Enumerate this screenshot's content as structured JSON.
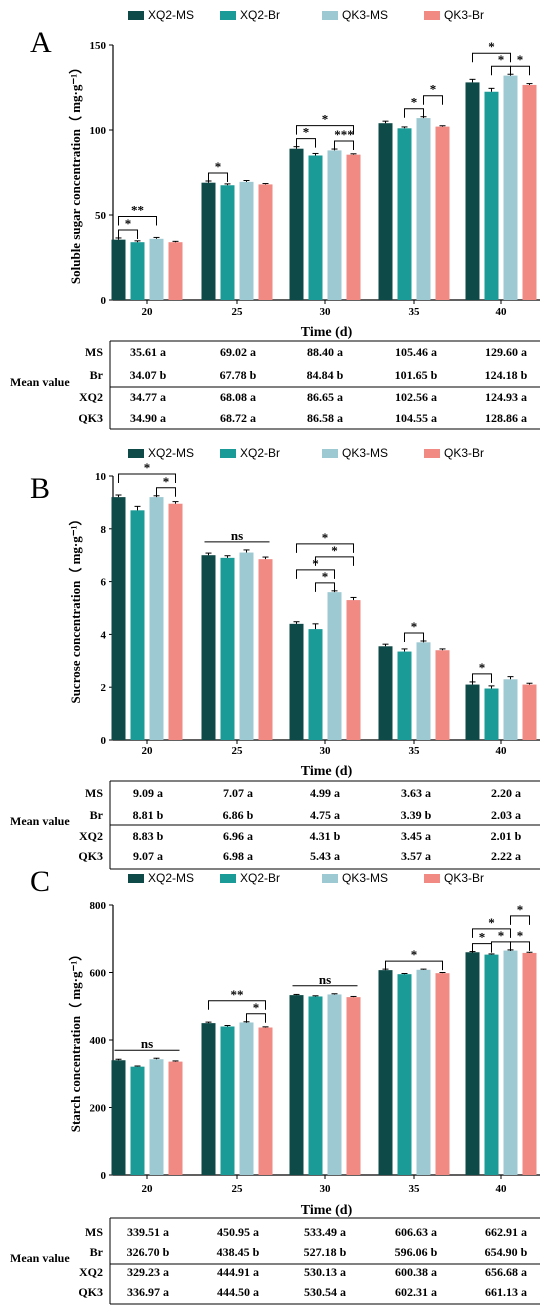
{
  "colors": {
    "XQ2-MS": "#0e4a47",
    "XQ2-Br": "#1a9b97",
    "QK3-MS": "#9cc9d2",
    "QK3-Br": "#f28a84"
  },
  "chart_data": [
    {
      "type": "bar",
      "panel_label": "A",
      "title": "",
      "xlabel": "Time (d)",
      "ylabel": "Soluble sugar concentration（ mg·g⁻¹）",
      "ylim": [
        0,
        150
      ],
      "yticks": [
        0,
        50,
        100,
        150
      ],
      "categories": [
        "20",
        "25",
        "30",
        "35",
        "40"
      ],
      "legend": "top",
      "grid": false,
      "series": [
        {
          "name": "XQ2-MS",
          "values": [
            35.5,
            69.0,
            89.0,
            104.0,
            128.0
          ],
          "errors": [
            1.0,
            1.0,
            1.2,
            1.2,
            1.8
          ]
        },
        {
          "name": "XQ2-Br",
          "values": [
            34.0,
            67.5,
            85.0,
            101.0,
            122.5
          ],
          "errors": [
            0.8,
            0.8,
            1.2,
            0.8,
            2.0
          ]
        },
        {
          "name": "QK3-MS",
          "values": [
            36.0,
            69.5,
            88.0,
            107.0,
            132.0
          ],
          "errors": [
            0.8,
            0.8,
            0.8,
            0.8,
            0.8
          ]
        },
        {
          "name": "QK3-Br",
          "values": [
            34.0,
            68.0,
            85.5,
            102.0,
            126.5
          ],
          "errors": [
            0.5,
            0.5,
            0.5,
            0.5,
            0.8
          ]
        }
      ],
      "significance": [
        {
          "cat": 0,
          "from": 0,
          "to": 1,
          "label": "*",
          "level": 1
        },
        {
          "cat": 0,
          "from": 0,
          "to": 2,
          "label": "**",
          "level": 2
        },
        {
          "cat": 1,
          "from": 0,
          "to": 1,
          "label": "*",
          "level": 1
        },
        {
          "cat": 2,
          "from": 0,
          "to": 1,
          "label": "*",
          "level": 1
        },
        {
          "cat": 2,
          "from": 2,
          "to": 3,
          "label": "***",
          "level": 1
        },
        {
          "cat": 2,
          "from": 0,
          "to": 3,
          "label": "*",
          "level": 2
        },
        {
          "cat": 3,
          "from": 1,
          "to": 2,
          "label": "*",
          "level": 1
        },
        {
          "cat": 3,
          "from": 2,
          "to": 3,
          "label": "*",
          "level": 2
        },
        {
          "cat": 4,
          "from": 1,
          "to": 2,
          "label": "*",
          "level": 1
        },
        {
          "cat": 4,
          "from": 2,
          "to": 3,
          "label": "*",
          "level": 1
        },
        {
          "cat": 4,
          "from": 0,
          "to": 2,
          "label": "*",
          "level": 2
        }
      ],
      "table": {
        "title": "Mean value",
        "rows": [
          {
            "label": "MS",
            "values": [
              "35.61 a",
              "69.02 a",
              "88.40 a",
              "105.46 a",
              "129.60 a"
            ]
          },
          {
            "label": "Br",
            "values": [
              "34.07 b",
              "67.78 b",
              "84.84 b",
              "101.65 b",
              "124.18 b"
            ]
          },
          {
            "label": "XQ2",
            "values": [
              "34.77 a",
              "68.08 a",
              "86.65 a",
              "102.56 a",
              "124.93 a"
            ]
          },
          {
            "label": "QK3",
            "values": [
              "34.90 a",
              "68.72 a",
              "86.58 a",
              "104.55 a",
              "128.86 a"
            ]
          }
        ]
      }
    },
    {
      "type": "bar",
      "panel_label": "B",
      "title": "",
      "xlabel": "Time (d)",
      "ylabel": "Sucrose concentration（ mg·g⁻¹）",
      "ylim": [
        0,
        10
      ],
      "yticks": [
        0,
        2,
        4,
        6,
        8,
        10
      ],
      "categories": [
        "20",
        "25",
        "30",
        "35",
        "40"
      ],
      "legend": "top",
      "grid": false,
      "series": [
        {
          "name": "XQ2-MS",
          "values": [
            9.2,
            7.0,
            4.4,
            3.55,
            2.1
          ],
          "errors": [
            0.08,
            0.08,
            0.08,
            0.08,
            0.1
          ]
        },
        {
          "name": "XQ2-Br",
          "values": [
            8.7,
            6.9,
            4.2,
            3.35,
            1.95
          ],
          "errors": [
            0.15,
            0.08,
            0.2,
            0.1,
            0.1
          ]
        },
        {
          "name": "QK3-MS",
          "values": [
            9.2,
            7.1,
            5.6,
            3.7,
            2.3
          ],
          "errors": [
            0.05,
            0.1,
            0.05,
            0.05,
            0.1
          ]
        },
        {
          "name": "QK3-Br",
          "values": [
            8.95,
            6.85,
            5.3,
            3.4,
            2.1
          ],
          "errors": [
            0.08,
            0.08,
            0.1,
            0.05,
            0.05
          ]
        }
      ],
      "significance": [
        {
          "cat": 0,
          "from": 2,
          "to": 3,
          "label": "*",
          "level": 1
        },
        {
          "cat": 0,
          "from": 0,
          "to": 3,
          "label": "*",
          "level": 2
        },
        {
          "cat": 1,
          "from": 0,
          "to": 3,
          "label": "ns",
          "level": 1,
          "plain": true
        },
        {
          "cat": 2,
          "from": 1,
          "to": 2,
          "label": "*",
          "level": 1
        },
        {
          "cat": 2,
          "from": 0,
          "to": 2,
          "label": "*",
          "level": 2
        },
        {
          "cat": 2,
          "from": 1,
          "to": 3,
          "label": "*",
          "level": 3
        },
        {
          "cat": 2,
          "from": 0,
          "to": 3,
          "label": "*",
          "level": 4
        },
        {
          "cat": 3,
          "from": 1,
          "to": 2,
          "label": "*",
          "level": 1
        },
        {
          "cat": 4,
          "from": 0,
          "to": 1,
          "label": "*",
          "level": 1
        }
      ],
      "table": {
        "title": "Mean value",
        "rows": [
          {
            "label": "MS",
            "values": [
              "9.09 a",
              "7.07 a",
              "4.99 a",
              "3.63 a",
              "2.20 a"
            ]
          },
          {
            "label": "Br",
            "values": [
              "8.81 b",
              "6.86 b",
              "4.75 a",
              "3.39 b",
              "2.03 a"
            ]
          },
          {
            "label": "XQ2",
            "values": [
              "8.83 b",
              "6.96 a",
              "4.31 b",
              "3.45 a",
              "2.01 b"
            ]
          },
          {
            "label": "QK3",
            "values": [
              "9.07 a",
              "6.98 a",
              "5.43 a",
              "3.57 a",
              "2.22 a"
            ]
          }
        ]
      }
    },
    {
      "type": "bar",
      "panel_label": "C",
      "title": "",
      "xlabel": "Time (d)",
      "ylabel": "Starch concentration（ mg·g⁻¹）",
      "ylim": [
        0,
        800
      ],
      "yticks": [
        0,
        200,
        400,
        600,
        800
      ],
      "categories": [
        "20",
        "25",
        "30",
        "35",
        "40"
      ],
      "legend": "top",
      "grid": false,
      "series": [
        {
          "name": "XQ2-MS",
          "values": [
            340,
            450,
            533,
            607,
            660
          ],
          "errors": [
            3,
            3,
            2,
            3,
            2
          ]
        },
        {
          "name": "XQ2-Br",
          "values": [
            321,
            440,
            529,
            595,
            653
          ],
          "errors": [
            2,
            3,
            2,
            2,
            2
          ]
        },
        {
          "name": "QK3-MS",
          "values": [
            343,
            452,
            535,
            608,
            665
          ],
          "errors": [
            3,
            2,
            2,
            2,
            2
          ]
        },
        {
          "name": "QK3-Br",
          "values": [
            336,
            437,
            527,
            598,
            658
          ],
          "errors": [
            2,
            2,
            2,
            2,
            2
          ]
        }
      ],
      "significance": [
        {
          "cat": 0,
          "from": 0,
          "to": 3,
          "label": "ns",
          "level": 1,
          "plain": true
        },
        {
          "cat": 1,
          "from": 2,
          "to": 3,
          "label": "*",
          "level": 1
        },
        {
          "cat": 1,
          "from": 0,
          "to": 3,
          "label": "**",
          "level": 2
        },
        {
          "cat": 2,
          "from": 0,
          "to": 3,
          "label": "ns",
          "level": 1,
          "plain": true
        },
        {
          "cat": 3,
          "from": 0,
          "to": 3,
          "label": "*",
          "level": 1
        },
        {
          "cat": 4,
          "from": 0,
          "to": 1,
          "label": "*",
          "level": 1
        },
        {
          "cat": 4,
          "from": 1,
          "to": 2,
          "label": "*",
          "level": 1
        },
        {
          "cat": 4,
          "from": 2,
          "to": 3,
          "label": "*",
          "level": 1
        },
        {
          "cat": 4,
          "from": 0,
          "to": 2,
          "label": "*",
          "level": 2
        },
        {
          "cat": 4,
          "from": 2,
          "to": 3,
          "label": "*",
          "level": 3
        }
      ],
      "table": {
        "title": "Mean value",
        "rows": [
          {
            "label": "MS",
            "values": [
              "339.51 a",
              "450.95 a",
              "533.49 a",
              "606.63 a",
              "662.91 a"
            ]
          },
          {
            "label": "Br",
            "values": [
              "326.70 b",
              "438.45 b",
              "527.18 b",
              "596.06 b",
              "654.90 b"
            ]
          },
          {
            "label": "XQ2",
            "values": [
              "329.23 a",
              "444.91 a",
              "530.13 a",
              "600.38 a",
              "656.68 a"
            ]
          },
          {
            "label": "QK3",
            "values": [
              "336.97 a",
              "444.50 a",
              "530.54 a",
              "602.31 a",
              "661.13 a"
            ]
          }
        ]
      }
    }
  ]
}
